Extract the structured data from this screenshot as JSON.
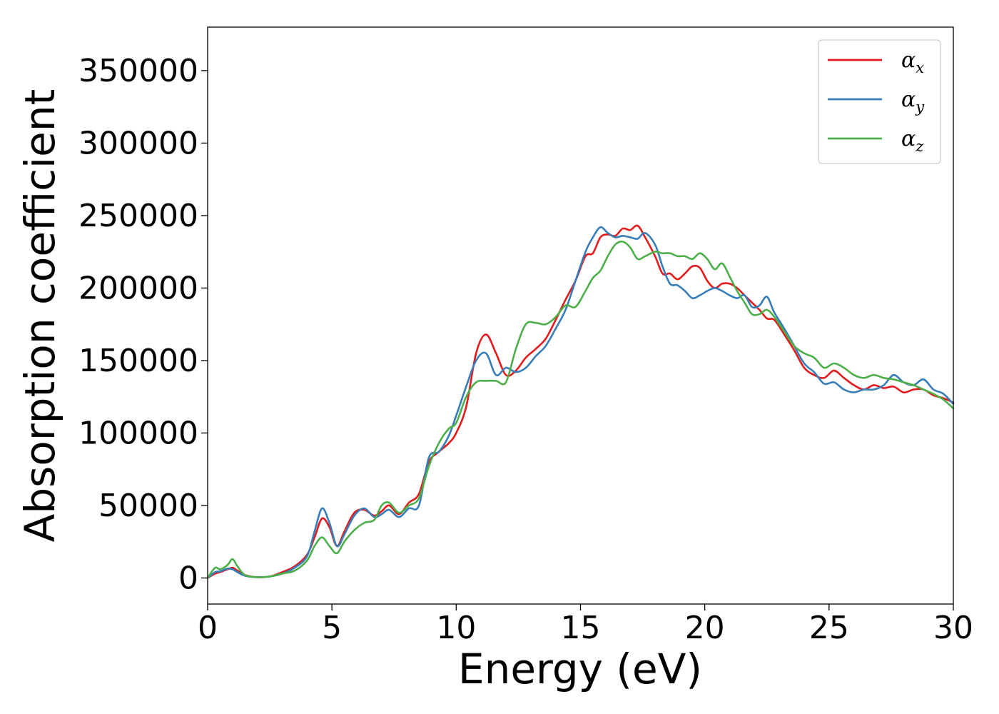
{
  "chart_data": {
    "type": "line",
    "xlabel": "Energy (eV)",
    "ylabel": "Absorption coefficient",
    "xlim": [
      0,
      30
    ],
    "ylim": [
      -18000,
      380000
    ],
    "x_ticks": [
      0,
      5,
      10,
      15,
      20,
      25,
      30
    ],
    "y_ticks": [
      0,
      50000,
      100000,
      150000,
      200000,
      250000,
      300000,
      350000
    ],
    "legend_position": "top-right",
    "grid": false,
    "x": [
      0,
      0.3,
      0.5,
      0.8,
      1.0,
      1.2,
      1.5,
      2.0,
      2.5,
      3.0,
      3.5,
      4.0,
      4.3,
      4.6,
      4.9,
      5.2,
      5.5,
      5.9,
      6.3,
      6.7,
      7.0,
      7.3,
      7.7,
      8.1,
      8.5,
      8.9,
      9.3,
      9.7,
      10.0,
      10.4,
      10.8,
      11.2,
      11.6,
      12.0,
      12.4,
      12.8,
      13.2,
      13.6,
      14.0,
      14.4,
      14.8,
      15.2,
      15.5,
      15.8,
      16.1,
      16.4,
      16.7,
      17.0,
      17.3,
      17.6,
      18.0,
      18.3,
      18.6,
      18.9,
      19.2,
      19.5,
      19.8,
      20.1,
      20.4,
      20.7,
      21.0,
      21.3,
      21.6,
      21.9,
      22.2,
      22.5,
      22.8,
      23.2,
      23.6,
      24.0,
      24.4,
      24.8,
      25.2,
      25.6,
      26.0,
      26.4,
      26.8,
      27.2,
      27.6,
      28.0,
      28.4,
      28.8,
      29.2,
      29.6,
      30.0
    ],
    "series": [
      {
        "name": "α_x",
        "label_base": "α",
        "label_sub": "x",
        "color": "#e41a1c",
        "values": [
          0,
          3000,
          4000,
          6000,
          7000,
          5000,
          2000,
          500,
          1000,
          4000,
          8000,
          16000,
          28000,
          41000,
          35000,
          22000,
          32000,
          45000,
          47000,
          43000,
          46000,
          50000,
          44000,
          52000,
          58000,
          80000,
          87000,
          93000,
          100000,
          118000,
          155000,
          168000,
          155000,
          140000,
          143000,
          152000,
          158000,
          165000,
          178000,
          192000,
          205000,
          222000,
          224000,
          235000,
          237000,
          236000,
          241000,
          240000,
          243000,
          235000,
          222000,
          210000,
          210000,
          206000,
          210000,
          215000,
          214000,
          205000,
          200000,
          203000,
          203000,
          200000,
          195000,
          190000,
          185000,
          179000,
          178000,
          168000,
          157000,
          145000,
          140000,
          138000,
          143000,
          138000,
          133000,
          130000,
          133000,
          131000,
          132000,
          128000,
          130000,
          130000,
          126000,
          124000,
          121000
        ]
      },
      {
        "name": "α_y",
        "label_base": "α",
        "label_sub": "y",
        "color": "#377eb8",
        "values": [
          0,
          4000,
          4500,
          6500,
          6000,
          4000,
          1500,
          500,
          1000,
          3000,
          7000,
          15000,
          32000,
          48000,
          38000,
          22000,
          30000,
          43000,
          48000,
          42000,
          44000,
          47000,
          42000,
          48000,
          50000,
          83000,
          87000,
          98000,
          112000,
          132000,
          150000,
          155000,
          140000,
          145000,
          142000,
          145000,
          153000,
          160000,
          172000,
          185000,
          205000,
          225000,
          235000,
          242000,
          238000,
          235000,
          236000,
          235000,
          234000,
          238000,
          230000,
          215000,
          203000,
          202000,
          198000,
          193000,
          195000,
          198000,
          200000,
          198000,
          195000,
          193000,
          195000,
          187000,
          188000,
          194000,
          183000,
          172000,
          160000,
          148000,
          142000,
          134000,
          135000,
          130000,
          128000,
          130000,
          130000,
          133000,
          140000,
          135000,
          133000,
          137000,
          130000,
          127000,
          120000
        ]
      },
      {
        "name": "α_z",
        "label_base": "α",
        "label_sub": "z",
        "color": "#4daf4a",
        "values": [
          0,
          7000,
          6000,
          9000,
          13000,
          8000,
          2000,
          500,
          1000,
          3000,
          5000,
          12000,
          22000,
          28000,
          22000,
          17000,
          25000,
          33000,
          38000,
          40000,
          50000,
          52000,
          45000,
          50000,
          55000,
          77000,
          93000,
          103000,
          107000,
          125000,
          135000,
          136000,
          136000,
          135000,
          158000,
          175000,
          176000,
          175000,
          180000,
          188000,
          187000,
          198000,
          207000,
          212000,
          222000,
          230000,
          232000,
          228000,
          220000,
          222000,
          225000,
          224000,
          224000,
          222000,
          222000,
          220000,
          224000,
          220000,
          213000,
          217000,
          208000,
          198000,
          190000,
          182000,
          182000,
          185000,
          180000,
          170000,
          160000,
          155000,
          152000,
          145000,
          148000,
          145000,
          140000,
          138000,
          140000,
          138000,
          137000,
          135000,
          133000,
          130000,
          127000,
          123000,
          117000
        ]
      }
    ]
  }
}
